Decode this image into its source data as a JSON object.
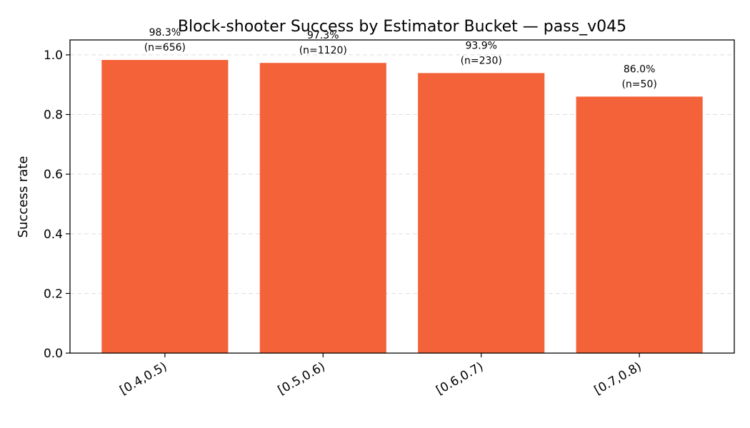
{
  "chart_data": {
    "type": "bar",
    "title": "Block-shooter Success by Estimator Bucket — pass_v045",
    "xlabel": "",
    "ylabel": "Success rate",
    "categories": [
      "[0.4,0.5)",
      "[0.5,0.6)",
      "[0.6,0.7)",
      "[0.7,0.8)"
    ],
    "values": [
      0.983,
      0.973,
      0.939,
      0.86
    ],
    "value_labels": [
      "98.3%",
      "97.3%",
      "93.9%",
      "86.0%"
    ],
    "count_labels": [
      "(n=656)",
      "(n=1120)",
      "(n=230)",
      "(n=50)"
    ],
    "ylim": [
      0,
      1.05
    ],
    "yticks": [
      0.0,
      0.2,
      0.4,
      0.6,
      0.8,
      1.0
    ],
    "ytick_labels": [
      "0.0",
      "0.2",
      "0.4",
      "0.6",
      "0.8",
      "1.0"
    ],
    "grid": "y-dashed",
    "bar_color": "#f4623a",
    "grid_color": "#dddddd"
  }
}
